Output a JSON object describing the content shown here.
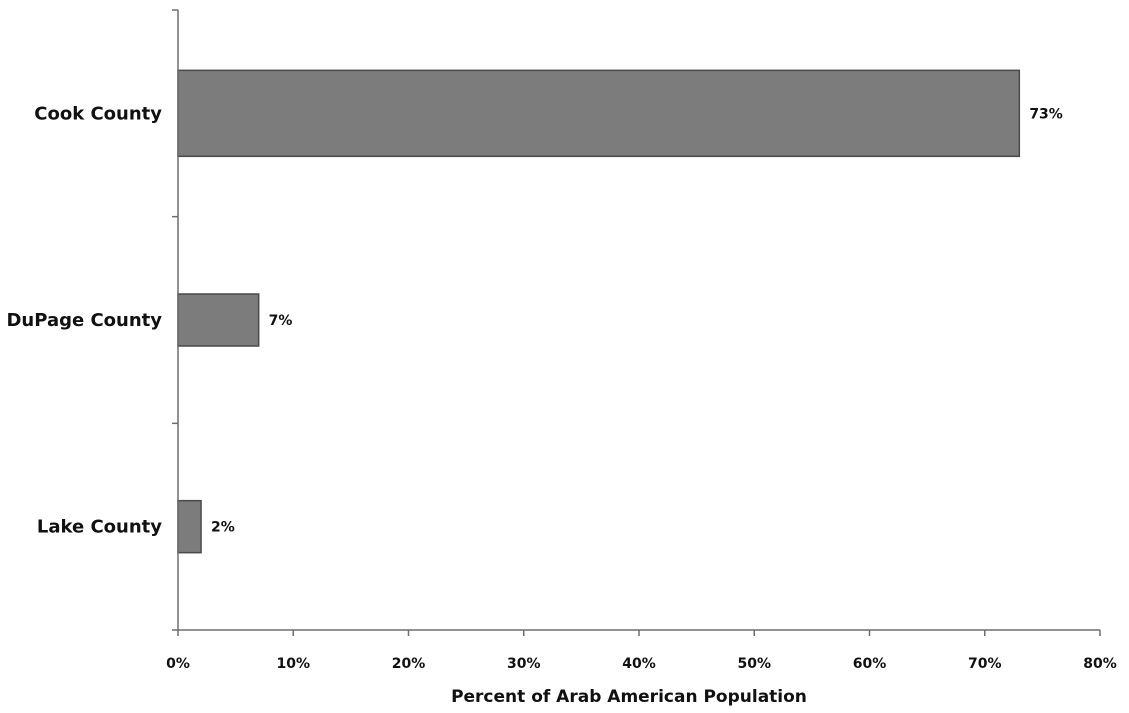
{
  "chart_data": {
    "type": "bar",
    "orientation": "horizontal",
    "categories": [
      "Cook County",
      "DuPage County",
      "Lake County"
    ],
    "values": [
      73,
      7,
      2
    ],
    "data_labels": [
      "73%",
      "7%",
      "2%"
    ],
    "xlim": [
      0,
      80
    ],
    "x_ticks": [
      0,
      10,
      20,
      30,
      40,
      50,
      60,
      70,
      80
    ],
    "x_tick_labels": [
      "0%",
      "10%",
      "20%",
      "30%",
      "40%",
      "50%",
      "60%",
      "70%",
      "80%"
    ],
    "xlabel": "Percent of Arab American Population",
    "ylabel": "",
    "title": "",
    "grid": false,
    "legend": "none",
    "bar_color": "#7c7c7c"
  }
}
